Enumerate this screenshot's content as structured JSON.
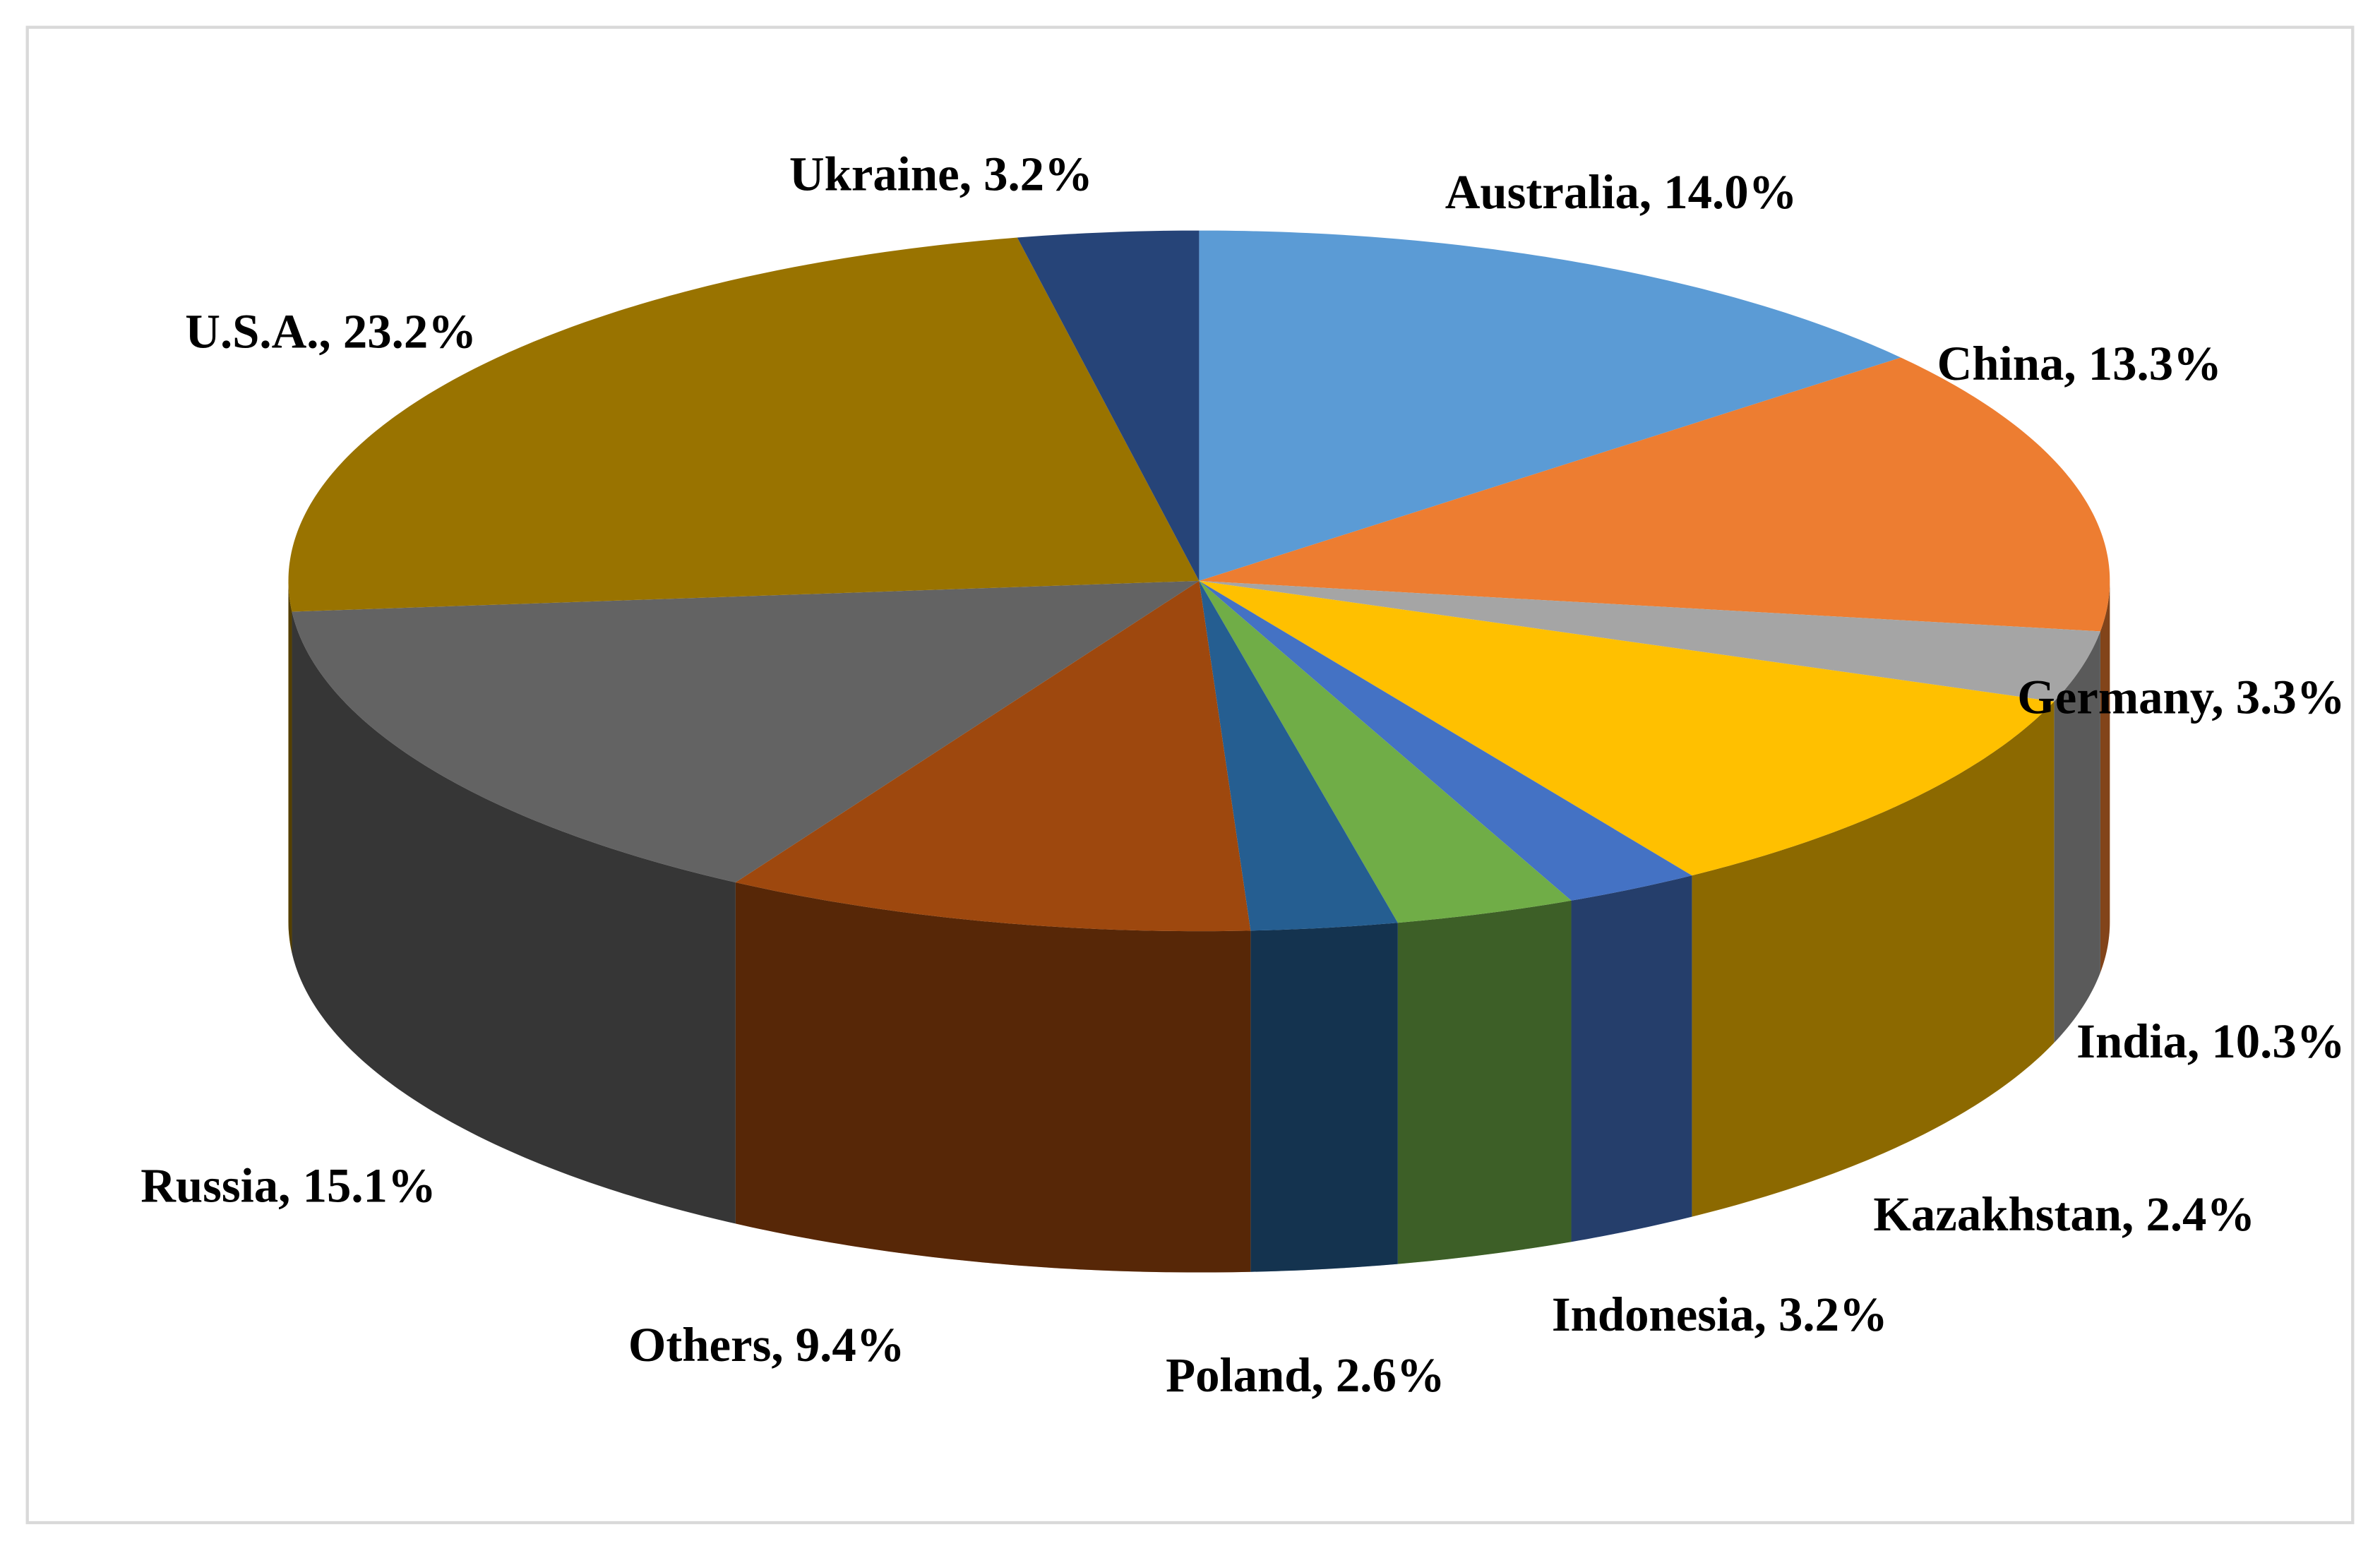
{
  "chart_data": {
    "type": "pie3d",
    "values": [
      14.0,
      13.3,
      3.3,
      10.3,
      2.4,
      3.2,
      2.6,
      9.4,
      15.1,
      23.2,
      3.2
    ],
    "value_labels": [
      "Australia, 14.0%",
      "China, 13.3%",
      "Germany, 3.3%",
      "India, 10.3%",
      "Kazakhstan, 2.4%",
      "Indonesia, 3.2%",
      "Poland, 2.6%",
      "Others, 9.4%",
      "Russia, 15.1%",
      "U.S.A., 23.2%",
      "Ukraine, 3.2%"
    ],
    "colors": [
      "#5b9bd5",
      "#ed7d31",
      "#a5a5a5",
      "#ffc000",
      "#4472c4",
      "#70ad47",
      "#255e91",
      "#9e480e",
      "#636363",
      "#997300",
      "#264478"
    ]
  }
}
